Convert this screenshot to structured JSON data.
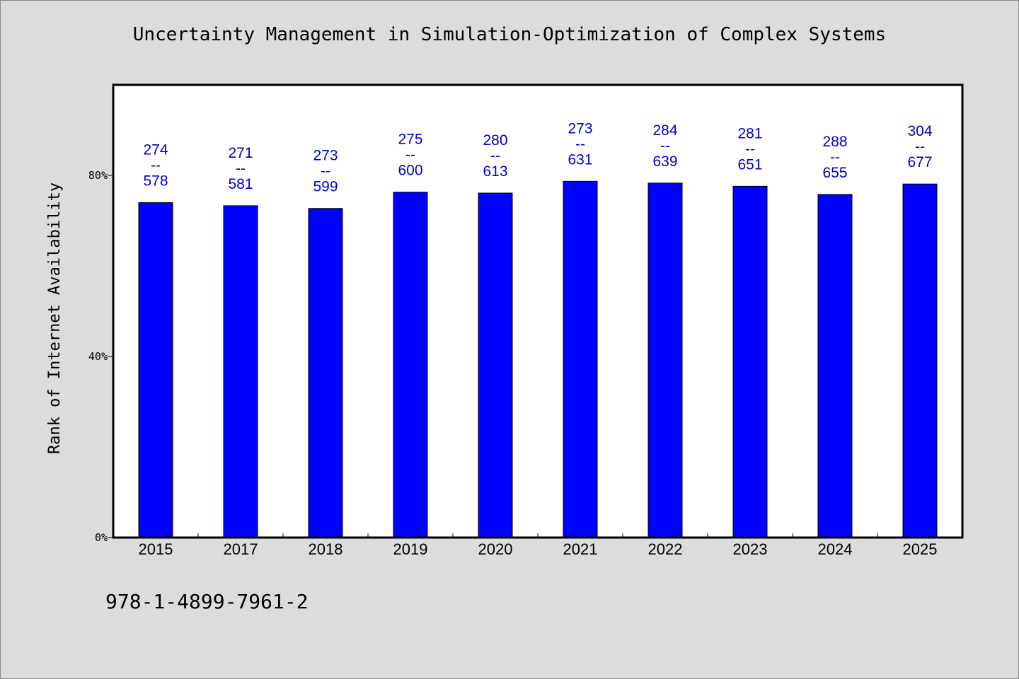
{
  "chart_data": {
    "type": "bar",
    "title": "Uncertainty Management in Simulation-Optimization of Complex Systems",
    "xlabel": "",
    "ylabel": "Rank of Internet Availability",
    "categories": [
      "2015",
      "2017",
      "2018",
      "2019",
      "2020",
      "2021",
      "2022",
      "2023",
      "2024",
      "2025"
    ],
    "values": [
      74.0,
      73.3,
      72.7,
      76.3,
      76.1,
      78.7,
      78.3,
      77.6,
      75.8,
      78.1
    ],
    "data_labels": [
      {
        "top": "274",
        "sep": "--",
        "bottom": "578"
      },
      {
        "top": "271",
        "sep": "--",
        "bottom": "581"
      },
      {
        "top": "273",
        "sep": "--",
        "bottom": "599"
      },
      {
        "top": "275",
        "sep": "--",
        "bottom": "600"
      },
      {
        "top": "280",
        "sep": "--",
        "bottom": "613"
      },
      {
        "top": "273",
        "sep": "--",
        "bottom": "631"
      },
      {
        "top": "284",
        "sep": "--",
        "bottom": "639"
      },
      {
        "top": "281",
        "sep": "--",
        "bottom": "651"
      },
      {
        "top": "288",
        "sep": "--",
        "bottom": "655"
      },
      {
        "top": "304",
        "sep": "--",
        "bottom": "677"
      }
    ],
    "yticks": [
      {
        "value": 0,
        "label": "0%"
      },
      {
        "value": 40,
        "label": "40%"
      },
      {
        "value": 80,
        "label": "80%"
      }
    ],
    "ylim": [
      0,
      100
    ],
    "grid": false,
    "bar_color": "#0000ff",
    "label_color": "#0000cc",
    "plot_background": "#ffffff",
    "page_background": "#dcdcdc"
  },
  "footer": {
    "isbn": "978-1-4899-7961-2"
  }
}
